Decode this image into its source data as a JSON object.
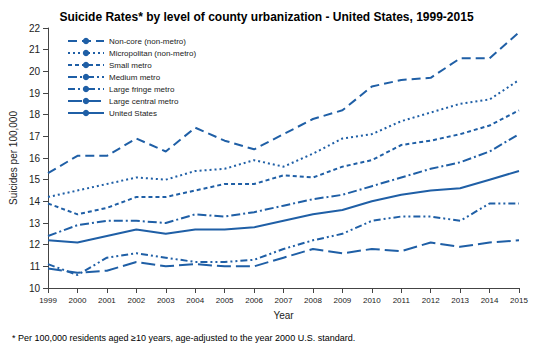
{
  "chart_data": {
    "type": "line",
    "title": "Suicide Rates* by level of county urbanization - United States, 1999-2015",
    "x_label": "Year",
    "y_label": "Suicides per 100,000",
    "footnote": "* Per 100,000 residents aged ≥10 years, age-adjusted to the year 2000 U.S. standard.",
    "categories": [
      "1999",
      "2000",
      "2001",
      "2002",
      "2003",
      "2004",
      "2005",
      "2006",
      "2007",
      "2008",
      "2009",
      "2010",
      "2011",
      "2012",
      "2013",
      "2014",
      "2015"
    ],
    "series": [
      {
        "name": "Non-core (non-metro)",
        "color": "#1f5fa6",
        "line_style": "dashed",
        "values": [
          15.3,
          16.1,
          16.1,
          16.9,
          16.3,
          17.4,
          16.8,
          16.4,
          17.1,
          17.8,
          18.2,
          19.3,
          19.6,
          19.7,
          20.6,
          20.6,
          21.8
        ]
      },
      {
        "name": "Micropolitan (non-metro)",
        "color": "#1f5fa6",
        "line_style": "dotted",
        "values": [
          14.2,
          14.5,
          14.8,
          15.1,
          15.0,
          15.4,
          15.5,
          15.9,
          15.6,
          16.2,
          16.9,
          17.1,
          17.7,
          18.1,
          18.5,
          18.7,
          19.6
        ]
      },
      {
        "name": "Small metro",
        "color": "#1f5fa6",
        "line_style": "short-dashed",
        "values": [
          13.9,
          13.4,
          13.7,
          14.2,
          14.2,
          14.5,
          14.8,
          14.8,
          15.2,
          15.1,
          15.6,
          15.9,
          16.6,
          16.8,
          17.1,
          17.5,
          18.2
        ]
      },
      {
        "name": "Medium metro",
        "color": "#1f5fa6",
        "line_style": "dash-dot",
        "values": [
          12.4,
          12.9,
          13.1,
          13.1,
          13.0,
          13.4,
          13.3,
          13.5,
          13.8,
          14.1,
          14.3,
          14.7,
          15.1,
          15.5,
          15.8,
          16.3,
          17.1
        ]
      },
      {
        "name": "Large fringe metro",
        "color": "#1f5fa6",
        "line_style": "dash-dot-dot",
        "values": [
          11.1,
          10.6,
          11.4,
          11.6,
          11.4,
          11.2,
          11.2,
          11.3,
          11.8,
          12.2,
          12.5,
          13.1,
          13.3,
          13.3,
          13.1,
          13.9,
          13.9
        ]
      },
      {
        "name": "Large central metro",
        "color": "#1f5fa6",
        "line_style": "long-dash",
        "values": [
          10.9,
          10.7,
          10.8,
          11.2,
          11.0,
          11.1,
          11.0,
          11.0,
          11.4,
          11.8,
          11.6,
          11.8,
          11.7,
          12.1,
          11.9,
          12.1,
          12.2
        ]
      },
      {
        "name": "United States",
        "color": "#1f5fa6",
        "line_style": "solid",
        "values": [
          12.2,
          12.1,
          12.4,
          12.7,
          12.5,
          12.7,
          12.7,
          12.8,
          13.1,
          13.4,
          13.6,
          14.0,
          14.3,
          14.5,
          14.6,
          15.0,
          15.4
        ]
      }
    ],
    "ylim": [
      10,
      22
    ],
    "yticks": [
      10,
      11,
      12,
      13,
      14,
      15,
      16,
      17,
      18,
      19,
      20,
      21,
      22
    ],
    "grid": false,
    "legend": "top-left"
  }
}
